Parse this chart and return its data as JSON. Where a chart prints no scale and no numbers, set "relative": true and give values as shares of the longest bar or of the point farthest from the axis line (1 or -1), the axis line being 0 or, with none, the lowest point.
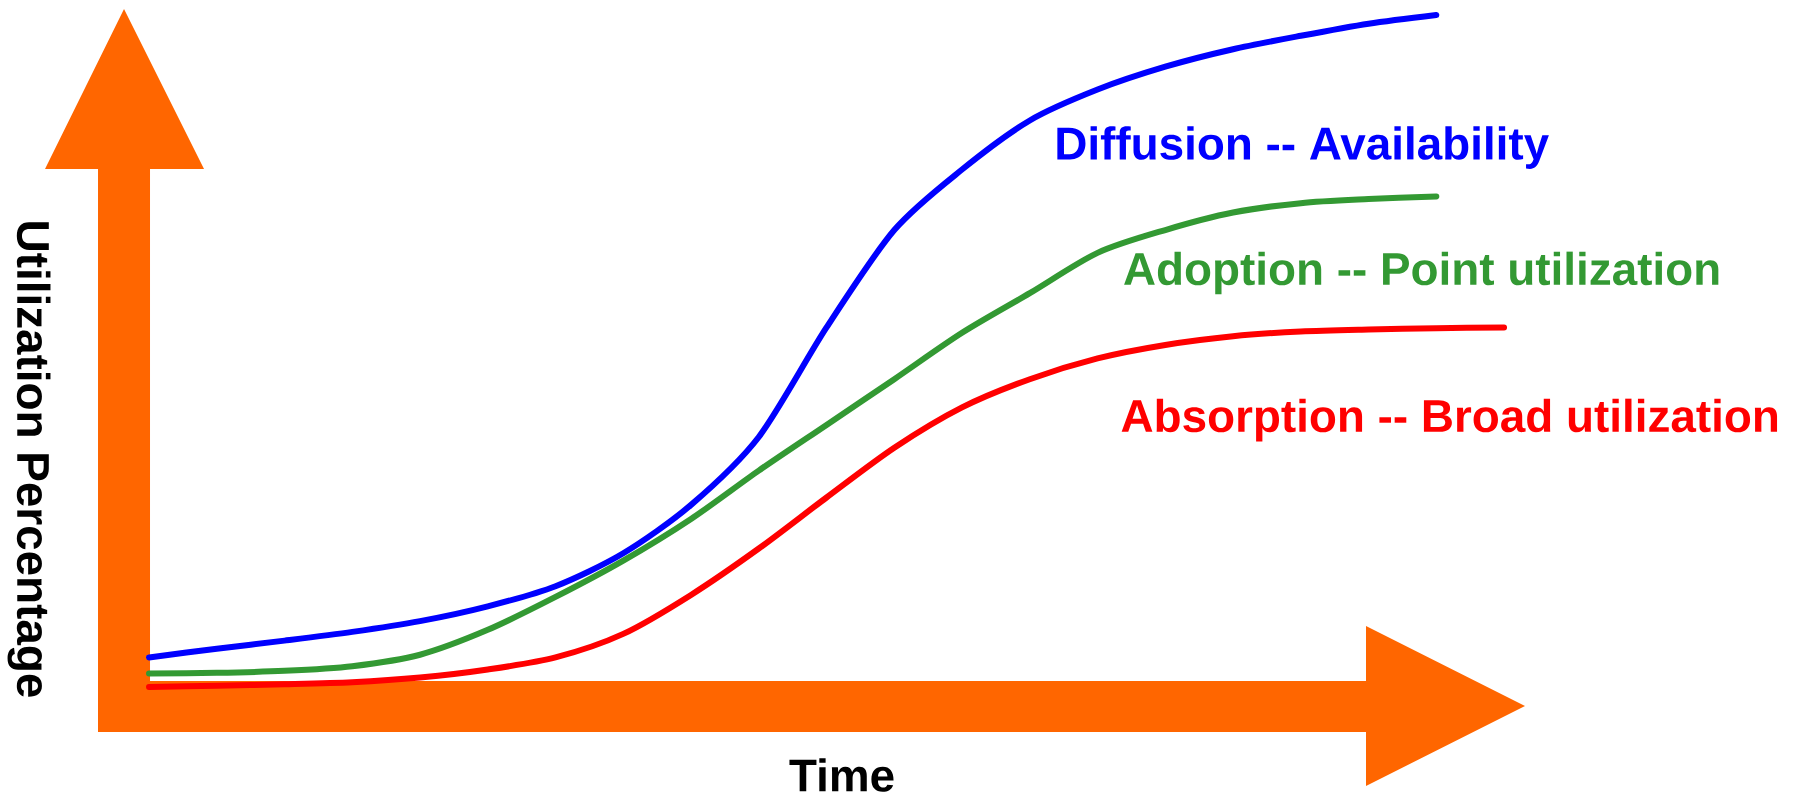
{
  "chart_data": {
    "type": "line",
    "relative": true,
    "xlabel": "Time",
    "ylabel": "Utilization Percentage",
    "categories": [
      null,
      null,
      null,
      null,
      null,
      null,
      null,
      null,
      null,
      null,
      null,
      null,
      null,
      null,
      null,
      null,
      null,
      null,
      null,
      null,
      null
    ],
    "series": [
      {
        "name": "Diffusion -- Availability",
        "color": "#0000ff",
        "values": [
          0.044,
          0.057,
          0.069,
          0.082,
          0.098,
          0.12,
          0.15,
          0.199,
          0.271,
          0.372,
          0.535,
          0.68,
          0.77,
          0.843,
          0.889,
          0.923,
          0.949,
          0.969,
          0.987,
          1.0,
          null
        ]
      },
      {
        "name": "Adoption -- Point utilization",
        "color": "#339933",
        "values": [
          0.02,
          0.021,
          0.024,
          0.031,
          0.048,
          0.085,
          0.134,
          0.188,
          0.25,
          0.322,
          0.39,
          0.458,
          0.527,
          0.586,
          0.646,
          0.68,
          0.706,
          0.72,
          0.726,
          0.73,
          null
        ]
      },
      {
        "name": "Absorption -- Broad utilization",
        "color": "#ff0000",
        "values": [
          0.0,
          0.002,
          0.004,
          0.007,
          0.014,
          0.026,
          0.044,
          0.079,
          0.137,
          0.206,
          0.282,
          0.356,
          0.416,
          0.458,
          0.489,
          0.509,
          0.522,
          0.529,
          0.532,
          0.534,
          0.535
        ]
      }
    ]
  }
}
